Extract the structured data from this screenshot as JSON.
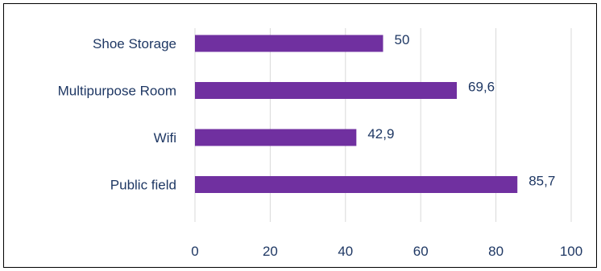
{
  "chart_data": {
    "type": "bar",
    "orientation": "horizontal",
    "categories": [
      "Shoe Storage",
      "Multipurpose Room",
      "Wifi",
      "Public field"
    ],
    "values": [
      50,
      69.6,
      42.9,
      85.7
    ],
    "value_labels": [
      "50",
      "69,6",
      "42,9",
      "85,7"
    ],
    "xlim": [
      0,
      100
    ],
    "xticks": [
      0,
      20,
      40,
      60,
      80,
      100
    ],
    "xtick_labels": [
      "0",
      "20",
      "40",
      "60",
      "80",
      "100"
    ],
    "title": "",
    "xlabel": "",
    "ylabel": "",
    "grid": "vertical gridlines",
    "legend": "none"
  },
  "colors": {
    "bar": "#7030A0",
    "text": "#1F3864",
    "grid": "#D9D9D9",
    "border": "#000000"
  }
}
